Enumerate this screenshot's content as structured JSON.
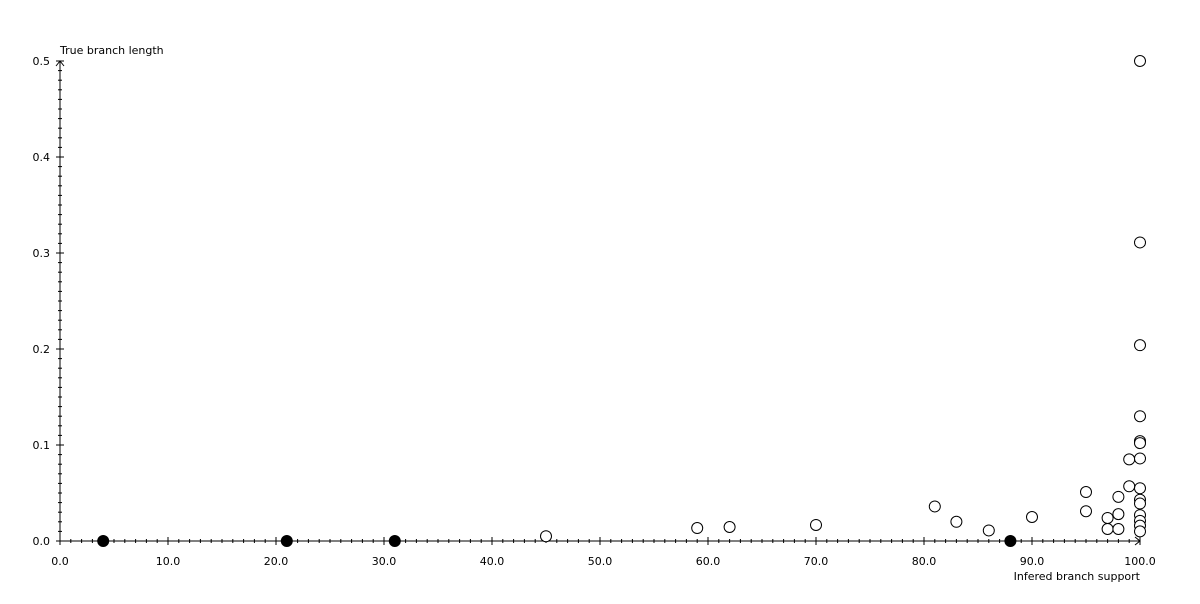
{
  "chart_data": {
    "type": "scatter",
    "xlabel": "Infered branch support",
    "ylabel": "True branch length",
    "xlim": [
      0,
      100
    ],
    "ylim": [
      0,
      0.5
    ],
    "x_ticks": [
      "0.0",
      "10.0",
      "20.0",
      "30.0",
      "40.0",
      "50.0",
      "60.0",
      "70.0",
      "80.0",
      "90.0",
      "100.0"
    ],
    "y_ticks": [
      "0.0",
      "0.1",
      "0.2",
      "0.3",
      "0.4",
      "0.5"
    ],
    "grid": false,
    "series": [
      {
        "marker": "filled-circle",
        "color": "#000000",
        "points": [
          [
            4,
            0
          ],
          [
            21,
            0
          ],
          [
            31,
            0
          ],
          [
            88,
            0
          ]
        ]
      },
      {
        "marker": "open-circle",
        "color": "#000000",
        "points": [
          [
            45,
            0.005
          ],
          [
            59,
            0.0135
          ],
          [
            62,
            0.0146
          ],
          [
            70,
            0.0167
          ],
          [
            81,
            0.036
          ],
          [
            83,
            0.02
          ],
          [
            86,
            0.011
          ],
          [
            90,
            0.025
          ],
          [
            95,
            0.051
          ],
          [
            95,
            0.031
          ],
          [
            97,
            0.024
          ],
          [
            97,
            0.0125
          ],
          [
            98,
            0.046
          ],
          [
            98,
            0.028
          ],
          [
            98,
            0.0125
          ],
          [
            99,
            0.057
          ],
          [
            99,
            0.085
          ],
          [
            100,
            0.5
          ],
          [
            100,
            0.311
          ],
          [
            100,
            0.204
          ],
          [
            100,
            0.13
          ],
          [
            100,
            0.104
          ],
          [
            100,
            0.102
          ],
          [
            100,
            0.086
          ],
          [
            100,
            0.055
          ],
          [
            100,
            0.043
          ],
          [
            100,
            0.039
          ],
          [
            100,
            0.027
          ],
          [
            100,
            0.021
          ],
          [
            100,
            0.016
          ],
          [
            100,
            0.01
          ]
        ]
      }
    ]
  }
}
